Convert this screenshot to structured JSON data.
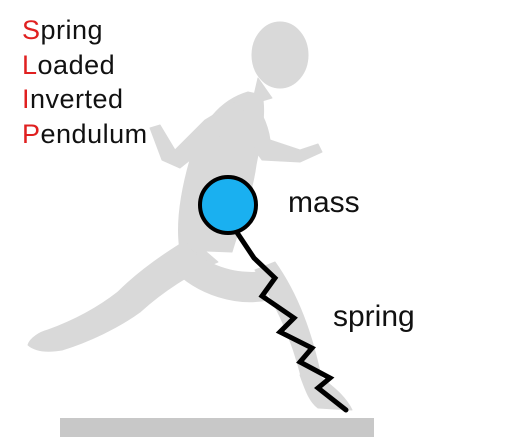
{
  "title_lines": [
    {
      "first": "S",
      "rest": "pring"
    },
    {
      "first": "L",
      "rest": "oaded"
    },
    {
      "first": "I",
      "rest": "nverted"
    },
    {
      "first": "P",
      "rest": "endulum"
    }
  ],
  "labels": {
    "mass": "mass",
    "spring": "spring"
  },
  "colors": {
    "acronym_letter": "#e02020",
    "text": "#111111",
    "mass_fill": "#1ab0f0",
    "mass_stroke": "#000000",
    "spring": "#000000",
    "runner_silhouette": "#d9d9d9",
    "ground": "#c8c8c8"
  },
  "icons": {
    "figure": "runner-silhouette-icon"
  }
}
